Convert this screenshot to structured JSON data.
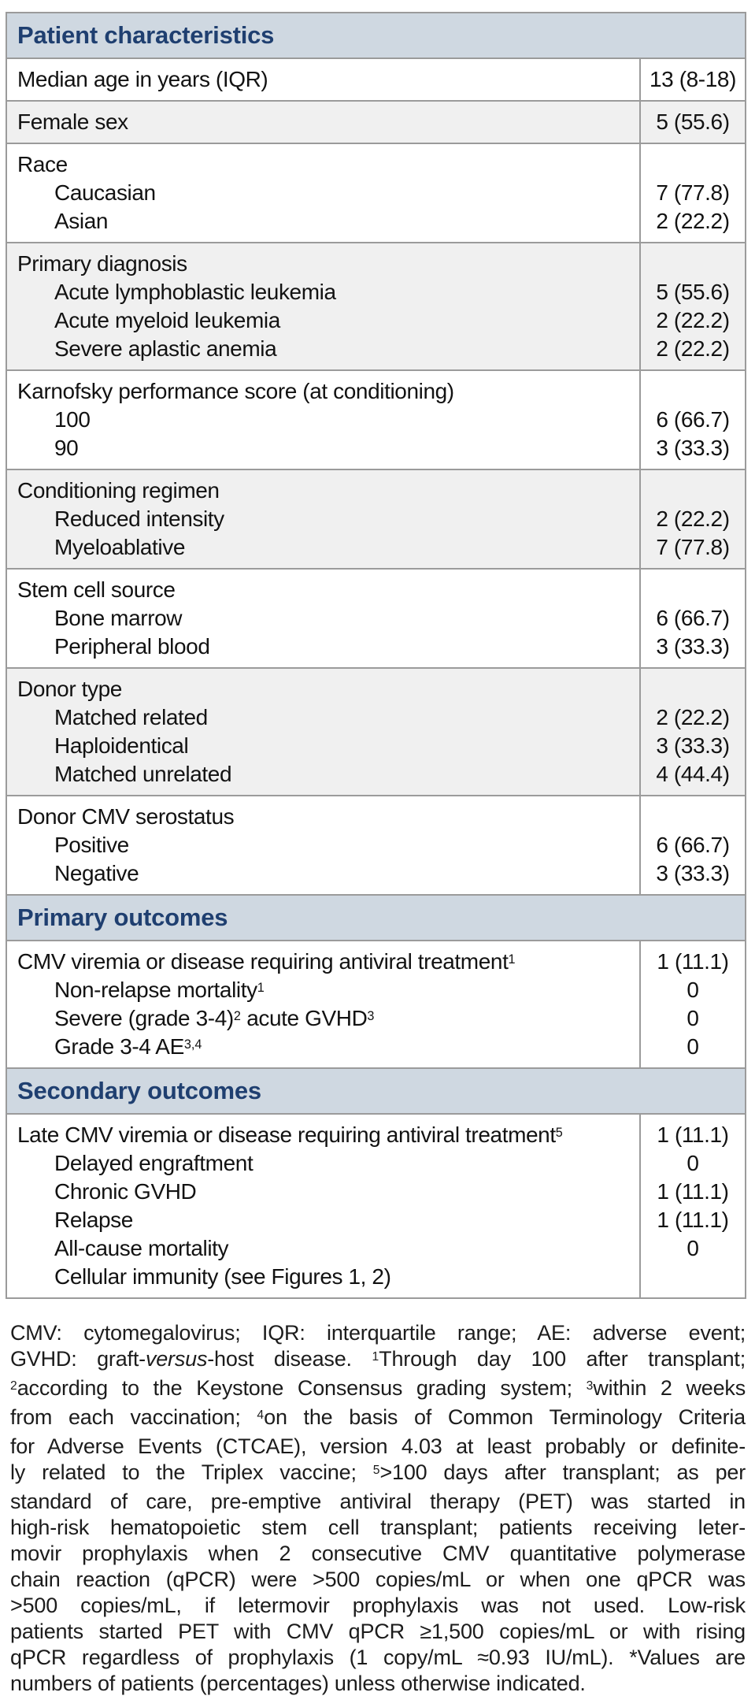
{
  "colors": {
    "band_bg": "#cfd8e1",
    "band_text": "#1f3f70",
    "stripe_bg": "#f0f0f0",
    "border": "#9b9b9b",
    "text": "#121212"
  },
  "table": {
    "sections": [
      {
        "type": "header",
        "title": "Patient characteristics"
      },
      {
        "type": "rows",
        "shade": false,
        "lines": [
          {
            "label": "Median age in years (IQR)",
            "indent": false,
            "value": "13 (8-18)"
          }
        ]
      },
      {
        "type": "rows",
        "shade": true,
        "lines": [
          {
            "label": "Female sex",
            "indent": false,
            "value": "5 (55.6)"
          }
        ]
      },
      {
        "type": "rows",
        "shade": false,
        "lines": [
          {
            "label": "Race",
            "indent": false,
            "value": ""
          },
          {
            "label": "Caucasian",
            "indent": true,
            "value": "7 (77.8)"
          },
          {
            "label": "Asian",
            "indent": true,
            "value": "2 (22.2)"
          }
        ]
      },
      {
        "type": "rows",
        "shade": true,
        "lines": [
          {
            "label": "Primary diagnosis",
            "indent": false,
            "value": ""
          },
          {
            "label": "Acute lymphoblastic leukemia",
            "indent": true,
            "value": "5 (55.6)"
          },
          {
            "label": "Acute myeloid leukemia",
            "indent": true,
            "value": "2 (22.2)"
          },
          {
            "label": "Severe aplastic anemia",
            "indent": true,
            "value": "2 (22.2)"
          }
        ]
      },
      {
        "type": "rows",
        "shade": false,
        "lines": [
          {
            "label": "Karnofsky performance score (at conditioning)",
            "indent": false,
            "value": ""
          },
          {
            "label": "100",
            "indent": true,
            "value": "6 (66.7)"
          },
          {
            "label": "90",
            "indent": true,
            "value": "3 (33.3)"
          }
        ]
      },
      {
        "type": "rows",
        "shade": true,
        "lines": [
          {
            "label": "Conditioning regimen",
            "indent": false,
            "value": ""
          },
          {
            "label": "Reduced intensity",
            "indent": true,
            "value": "2 (22.2)"
          },
          {
            "label": "Myeloablative",
            "indent": true,
            "value": "7 (77.8)"
          }
        ]
      },
      {
        "type": "rows",
        "shade": false,
        "lines": [
          {
            "label": "Stem cell source",
            "indent": false,
            "value": ""
          },
          {
            "label": "Bone marrow",
            "indent": true,
            "value": "6 (66.7)"
          },
          {
            "label": "Peripheral blood",
            "indent": true,
            "value": "3 (33.3)"
          }
        ]
      },
      {
        "type": "rows",
        "shade": true,
        "lines": [
          {
            "label": "Donor type",
            "indent": false,
            "value": ""
          },
          {
            "label": "Matched related",
            "indent": true,
            "value": "2 (22.2)"
          },
          {
            "label": "Haploidentical",
            "indent": true,
            "value": "3 (33.3)"
          },
          {
            "label": "Matched unrelated",
            "indent": true,
            "value": "4 (44.4)"
          }
        ]
      },
      {
        "type": "rows",
        "shade": false,
        "lines": [
          {
            "label": "Donor CMV serostatus",
            "indent": false,
            "value": ""
          },
          {
            "label": "Positive",
            "indent": true,
            "value": "6 (66.7)"
          },
          {
            "label": "Negative",
            "indent": true,
            "value": "3 (33.3)"
          }
        ]
      },
      {
        "type": "header",
        "title": "Primary outcomes"
      },
      {
        "type": "rows",
        "shade": false,
        "lines": [
          {
            "label": "CMV viremia or disease requiring antiviral treatment^1",
            "indent": false,
            "value": "1 (11.1)"
          },
          {
            "label": "Non-relapse mortality^1",
            "indent": true,
            "value": "0"
          },
          {
            "label": "Severe (grade 3-4)^2 acute GVHD^3",
            "indent": true,
            "value": "0"
          },
          {
            "label": "Grade 3-4 AE^3,4",
            "indent": true,
            "value": "0"
          }
        ]
      },
      {
        "type": "header",
        "title": "Secondary outcomes"
      },
      {
        "type": "rows",
        "shade": false,
        "lines": [
          {
            "label": "Late CMV viremia or disease requiring antiviral treatment^5",
            "indent": false,
            "value": "1 (11.1)"
          },
          {
            "label": "Delayed engraftment",
            "indent": true,
            "value": "0"
          },
          {
            "label": "Chronic GVHD",
            "indent": true,
            "value": "1 (11.1)"
          },
          {
            "label": "Relapse",
            "indent": true,
            "value": "1 (11.1)"
          },
          {
            "label": "All-cause mortality",
            "indent": true,
            "value": "0"
          },
          {
            "label": "Cellular immunity (see Figures 1, 2)",
            "indent": true,
            "value": ""
          }
        ]
      }
    ]
  },
  "footnote": {
    "lines": [
      "CMV: cytomegalovirus; IQR: interquartile range; AE: adverse event;",
      "GVHD: graft-~versus~-host disease. ^1Through day 100 after transplant;",
      "^2according to the Keystone Consensus grading system; ^3within 2 weeks",
      "from each vaccination; ^4on the basis of Common Terminology Criteria",
      "for Adverse Events (CTCAE), version 4.03 at least probably or definite-",
      "ly related to the Triplex vaccine; ^5>100 days after transplant; as per",
      "standard of care, pre-emptive antiviral therapy (PET) was started in",
      "high-risk hematopoietic stem cell transplant; patients receiving leter-",
      "movir prophylaxis when 2 consecutive CMV quantitative polymerase",
      "chain reaction (qPCR) were >500 copies/mL or when one qPCR was",
      ">500 copies/mL, if letermovir prophylaxis was not used. Low-risk",
      "patients started PET with CMV qPCR ≥1,500 copies/mL or with rising",
      "qPCR regardless of prophylaxis (1 copy/mL ≈0.93 IU/mL). *Values are",
      "numbers of patients (percentages) unless otherwise indicated."
    ]
  }
}
